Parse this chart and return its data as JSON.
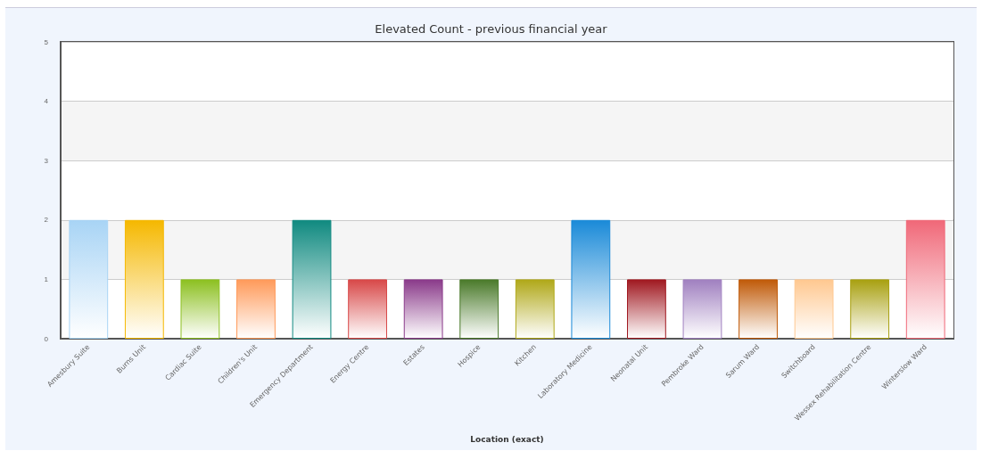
{
  "chart_data": {
    "type": "bar",
    "title": "Elevated Count - previous financial year",
    "xlabel": "Location (exact)",
    "categories": [
      "Amesbury Suite",
      "Burns Unit",
      "Cardiac Suite",
      "Children's Unit",
      "Emergency Department",
      "Energy Centre",
      "Estates",
      "Hospice",
      "Kitchen",
      "Laboratory Medicine",
      "Neonatal Unit",
      "Pembroke Ward",
      "Sarum Ward",
      "Switchboard",
      "Wessex Rehabilitation Centre",
      "Winterslow Ward"
    ],
    "values": [
      2,
      2,
      1,
      1,
      2,
      1,
      1,
      1,
      1,
      2,
      1,
      1,
      1,
      1,
      1,
      2
    ],
    "colors": [
      "#a8d4f5",
      "#f5b800",
      "#8cc020",
      "#ff9a5a",
      "#108a80",
      "#d84848",
      "#8a3a8a",
      "#4a7a2a",
      "#b0a818",
      "#1a8ad8",
      "#a01820",
      "#a080c0",
      "#c05a08",
      "#ffc890",
      "#a8a010",
      "#f06878"
    ],
    "ylim": [
      0,
      5
    ],
    "yticks": [
      0,
      1,
      2,
      3,
      4,
      5
    ],
    "grid": "y"
  }
}
